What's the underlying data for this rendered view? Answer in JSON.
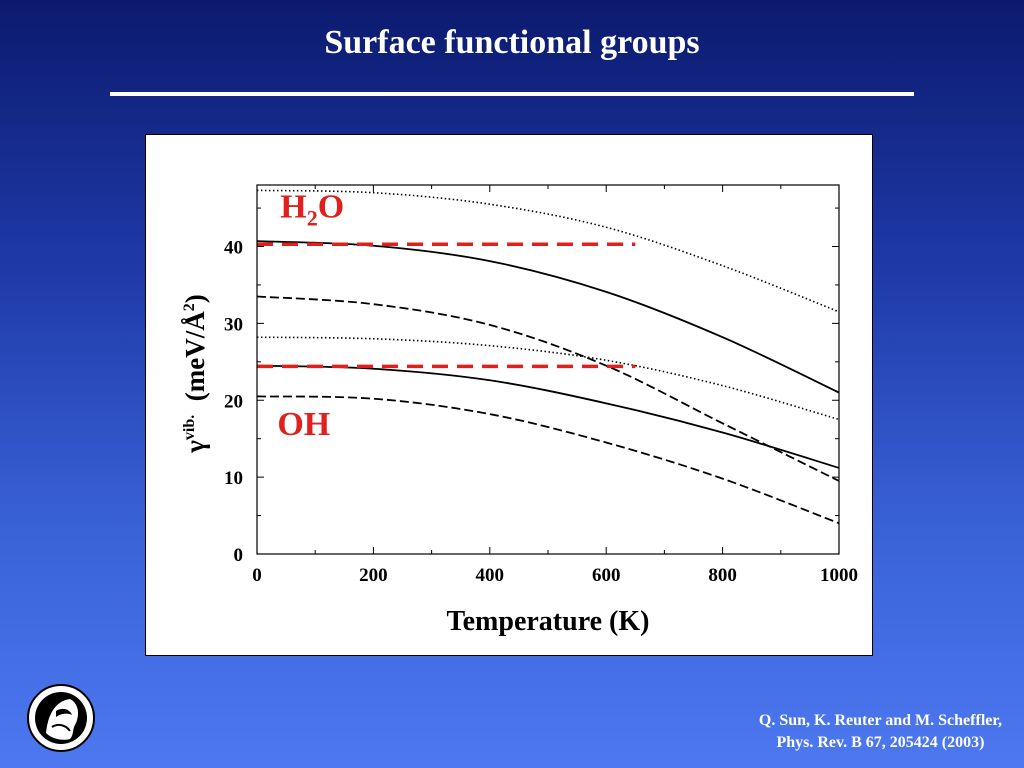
{
  "slide": {
    "title": "Surface functional groups",
    "citation_line1": "Q. Sun, K. Reuter and M. Scheffler,",
    "citation_line2": "Phys. Rev. B 67, 205424 (2003)",
    "logo_icon": "minerva-seal-icon"
  },
  "colors": {
    "accent": "#e0201c",
    "curve": "#000000",
    "background_top": "#0b1a6e",
    "background_bottom": "#4d78f0"
  },
  "chart_data": {
    "type": "line",
    "xlabel": "Temperature (K)",
    "ylabel": {
      "greek": "γ",
      "superscript": "vib.",
      "unit_prefix": "(meV/Å",
      "unit_power": "2",
      "unit_suffix": ")"
    },
    "xlim": [
      0,
      1000
    ],
    "ylim": [
      0,
      48
    ],
    "x_ticks": [
      0,
      200,
      400,
      600,
      800,
      1000
    ],
    "y_ticks": [
      0,
      10,
      20,
      30,
      40
    ],
    "x_tick_labels": [
      "0",
      "200",
      "400",
      "600",
      "800",
      "1000"
    ],
    "y_tick_labels": [
      "0",
      "10",
      "20",
      "30",
      "40"
    ],
    "grid": false,
    "annotations": [
      {
        "main": "H",
        "sub": "2",
        "tail": "O",
        "x": 40,
        "y": 43.8
      },
      {
        "main": "OH",
        "x": 35,
        "y": 15.5
      }
    ],
    "reference_lines": [
      {
        "y": 40.3,
        "x_start": 0,
        "x_end": 650,
        "style": "dashed",
        "color": "#e0201c"
      },
      {
        "y": 24.4,
        "x_start": 0,
        "x_end": 650,
        "style": "dashed",
        "color": "#e0201c"
      }
    ],
    "series": [
      {
        "style": "dotted",
        "x": [
          0,
          200,
          400,
          600,
          800,
          1000
        ],
        "y": [
          47.3,
          47.0,
          45.5,
          42.5,
          37.5,
          31.5
        ]
      },
      {
        "style": "solid",
        "x": [
          0,
          200,
          400,
          600,
          800,
          1000
        ],
        "y": [
          40.7,
          40.1,
          38.1,
          34.1,
          28.2,
          21.0
        ]
      },
      {
        "style": "dashed",
        "x": [
          0,
          200,
          400,
          600,
          800,
          1000
        ],
        "y": [
          33.5,
          32.5,
          29.8,
          24.5,
          17.0,
          9.5
        ]
      },
      {
        "style": "dotted",
        "x": [
          0,
          200,
          400,
          600,
          800,
          1000
        ],
        "y": [
          28.2,
          28.0,
          27.1,
          25.2,
          21.9,
          17.5
        ]
      },
      {
        "style": "solid",
        "x": [
          0,
          200,
          400,
          600,
          800,
          1000
        ],
        "y": [
          24.5,
          24.1,
          22.6,
          19.6,
          15.8,
          11.2
        ]
      },
      {
        "style": "dashed",
        "x": [
          0,
          200,
          400,
          600,
          800,
          1000
        ],
        "y": [
          20.5,
          20.2,
          18.2,
          14.5,
          9.8,
          4.0
        ]
      }
    ]
  }
}
